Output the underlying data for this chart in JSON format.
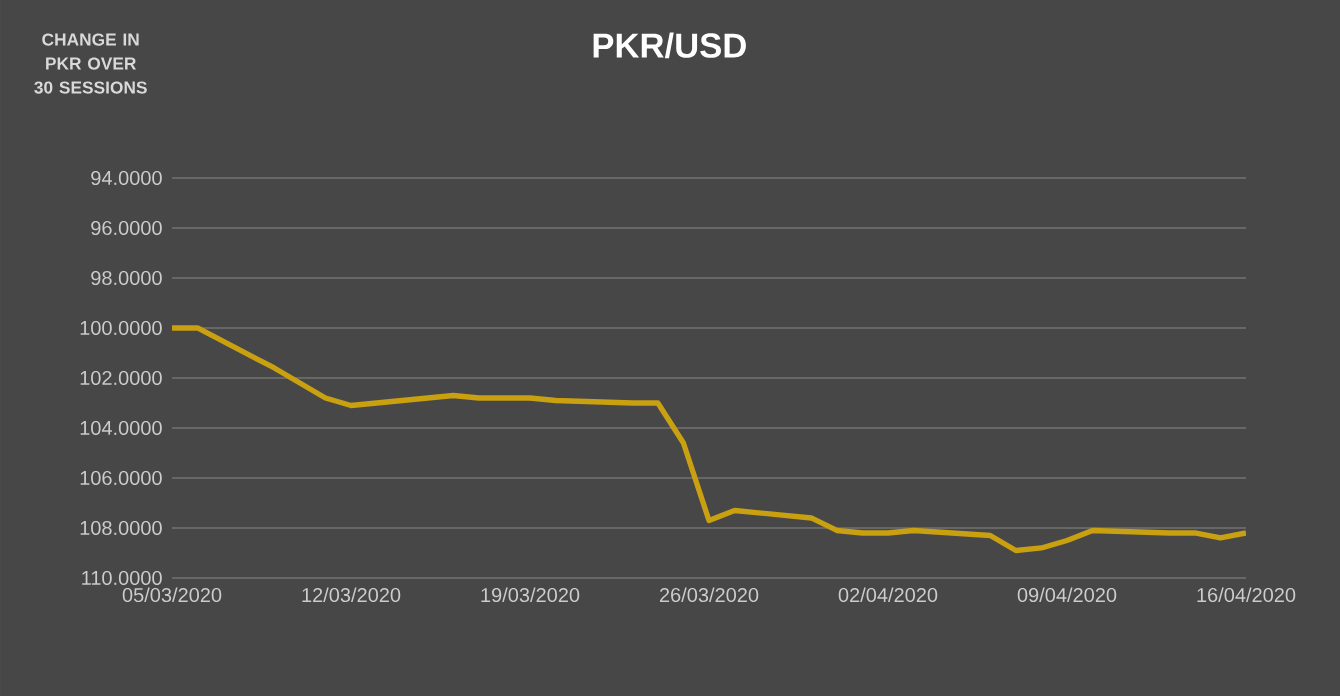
{
  "chart_data": {
    "type": "line",
    "title": "PKR/USD",
    "ylabel": "CHANGE IN PKR OVER 30 SESSIONS",
    "x": [
      "2020-03-05",
      "2020-03-06",
      "2020-03-09",
      "2020-03-10",
      "2020-03-11",
      "2020-03-12",
      "2020-03-13",
      "2020-03-16",
      "2020-03-17",
      "2020-03-18",
      "2020-03-19",
      "2020-03-20",
      "2020-03-23",
      "2020-03-24",
      "2020-03-25",
      "2020-03-26",
      "2020-03-27",
      "2020-03-30",
      "2020-03-31",
      "2020-04-01",
      "2020-04-02",
      "2020-04-03",
      "2020-04-06",
      "2020-04-07",
      "2020-04-08",
      "2020-04-09",
      "2020-04-10",
      "2020-04-13",
      "2020-04-14",
      "2020-04-15",
      "2020-04-16"
    ],
    "series": [
      {
        "color": "#c9a010",
        "values": [
          100.0,
          100.0,
          101.6,
          102.2,
          102.8,
          103.1,
          103.0,
          102.7,
          102.8,
          102.8,
          102.8,
          102.9,
          103.0,
          103.0,
          104.6,
          107.7,
          107.3,
          107.6,
          108.1,
          108.2,
          108.2,
          108.1,
          108.3,
          108.9,
          108.8,
          108.5,
          108.1,
          108.2,
          108.2,
          108.4,
          108.2
        ]
      }
    ],
    "xlim": [
      "2020-03-05",
      "2020-04-16"
    ],
    "xticks": [
      {
        "value": "2020-03-05",
        "label": "05/03/2020"
      },
      {
        "value": "2020-03-12",
        "label": "12/03/2020"
      },
      {
        "value": "2020-03-19",
        "label": "19/03/2020"
      },
      {
        "value": "2020-03-26",
        "label": "26/03/2020"
      },
      {
        "value": "2020-04-02",
        "label": "02/04/2020"
      },
      {
        "value": "2020-04-09",
        "label": "09/04/2020"
      },
      {
        "value": "2020-04-16",
        "label": "16/04/2020"
      }
    ],
    "ylim": [
      110,
      94
    ],
    "yticks": [
      {
        "value": 94,
        "label": "94.0000"
      },
      {
        "value": 96,
        "label": "96.0000"
      },
      {
        "value": 98,
        "label": "98.0000"
      },
      {
        "value": 100,
        "label": "100.0000"
      },
      {
        "value": 102,
        "label": "102.0000"
      },
      {
        "value": 104,
        "label": "104.0000"
      },
      {
        "value": 106,
        "label": "106.0000"
      },
      {
        "value": 108,
        "label": "108.0000"
      },
      {
        "value": 110,
        "label": "110.0000"
      }
    ],
    "grid": "y",
    "marker": "none",
    "line_style": "solid"
  }
}
